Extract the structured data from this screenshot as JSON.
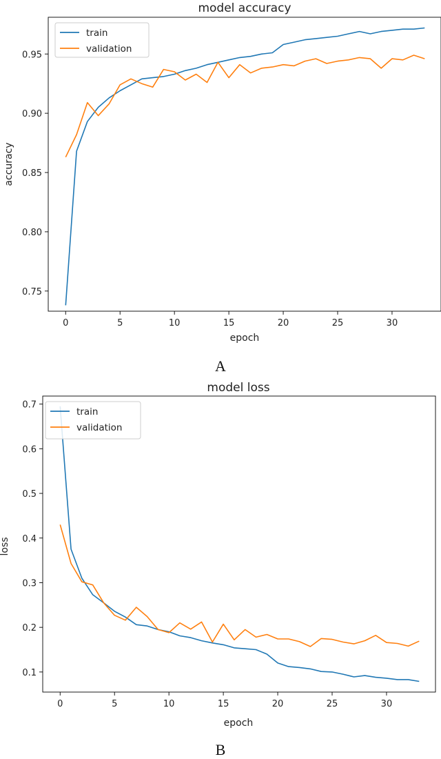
{
  "chart_data": [
    {
      "type": "line",
      "title": "model accuracy",
      "xlabel": "epoch",
      "ylabel": "accuracy",
      "caption": "A",
      "xlim": [
        -1.6,
        34.5
      ],
      "ylim": [
        0.733,
        0.981
      ],
      "xticks": [
        0,
        5,
        10,
        15,
        20,
        25,
        30
      ],
      "yticks": [
        "0.75",
        "0.80",
        "0.85",
        "0.90",
        "0.95"
      ],
      "legend": {
        "position": "top-left",
        "entries": [
          "train",
          "validation"
        ]
      },
      "grid": false,
      "x": [
        0,
        1,
        2,
        3,
        4,
        5,
        6,
        7,
        8,
        9,
        10,
        11,
        12,
        13,
        14,
        15,
        16,
        17,
        18,
        19,
        20,
        21,
        22,
        23,
        24,
        25,
        26,
        27,
        28,
        29,
        30,
        31,
        32,
        33
      ],
      "series": [
        {
          "name": "train",
          "color": "#1f77b4",
          "values": [
            0.738,
            0.868,
            0.893,
            0.905,
            0.913,
            0.919,
            0.924,
            0.929,
            0.93,
            0.931,
            0.933,
            0.936,
            0.938,
            0.941,
            0.943,
            0.945,
            0.947,
            0.948,
            0.95,
            0.951,
            0.958,
            0.96,
            0.962,
            0.963,
            0.964,
            0.965,
            0.967,
            0.969,
            0.967,
            0.969,
            0.97,
            0.971,
            0.971,
            0.972
          ]
        },
        {
          "name": "validation",
          "color": "#ff7f0e",
          "values": [
            0.863,
            0.882,
            0.909,
            0.898,
            0.908,
            0.924,
            0.929,
            0.925,
            0.922,
            0.937,
            0.935,
            0.928,
            0.933,
            0.926,
            0.943,
            0.93,
            0.941,
            0.934,
            0.938,
            0.939,
            0.941,
            0.94,
            0.944,
            0.946,
            0.942,
            0.944,
            0.945,
            0.947,
            0.946,
            0.938,
            0.946,
            0.945,
            0.949,
            0.946
          ]
        }
      ]
    },
    {
      "type": "line",
      "title": "model loss",
      "xlabel": "epoch",
      "ylabel": "loss",
      "caption": "B",
      "xlim": [
        -1.6,
        34.5
      ],
      "ylim": [
        0.055,
        0.718
      ],
      "xticks": [
        0,
        5,
        10,
        15,
        20,
        25,
        30
      ],
      "yticks": [
        "0.1",
        "0.2",
        "0.3",
        "0.4",
        "0.5",
        "0.6",
        "0.7"
      ],
      "legend": {
        "position": "top-left",
        "entries": [
          "train",
          "validation"
        ]
      },
      "grid": false,
      "x": [
        0,
        1,
        2,
        3,
        4,
        5,
        6,
        7,
        8,
        9,
        10,
        11,
        12,
        13,
        14,
        15,
        16,
        17,
        18,
        19,
        20,
        21,
        22,
        23,
        24,
        25,
        26,
        27,
        28,
        29,
        30,
        31,
        32,
        33
      ],
      "series": [
        {
          "name": "train",
          "color": "#1f77b4",
          "values": [
            0.695,
            0.375,
            0.31,
            0.273,
            0.255,
            0.236,
            0.223,
            0.206,
            0.203,
            0.195,
            0.19,
            0.181,
            0.177,
            0.17,
            0.165,
            0.161,
            0.154,
            0.152,
            0.15,
            0.14,
            0.12,
            0.112,
            0.11,
            0.107,
            0.101,
            0.1,
            0.095,
            0.089,
            0.092,
            0.088,
            0.086,
            0.083,
            0.083,
            0.079
          ]
        },
        {
          "name": "validation",
          "color": "#ff7f0e",
          "values": [
            0.43,
            0.343,
            0.302,
            0.295,
            0.255,
            0.227,
            0.216,
            0.245,
            0.224,
            0.195,
            0.188,
            0.21,
            0.196,
            0.212,
            0.167,
            0.207,
            0.172,
            0.195,
            0.178,
            0.184,
            0.174,
            0.174,
            0.168,
            0.157,
            0.175,
            0.173,
            0.167,
            0.163,
            0.17,
            0.182,
            0.166,
            0.164,
            0.158,
            0.169
          ]
        }
      ]
    }
  ]
}
